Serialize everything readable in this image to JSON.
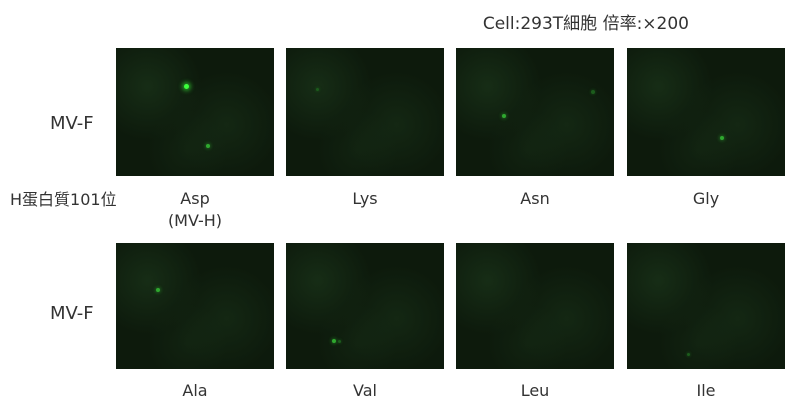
{
  "caption": "Cell:293T細胞 倍率:×200",
  "row_label": "MV-F",
  "h_label": "H蛋白質101位",
  "top_row": [
    {
      "line1": "Asp",
      "line2": "(MV-H)"
    },
    {
      "line1": "Lys",
      "line2": ""
    },
    {
      "line1": "Asn",
      "line2": ""
    },
    {
      "line1": "Gly",
      "line2": ""
    }
  ],
  "bottom_row": [
    {
      "line1": "Ala"
    },
    {
      "line1": "Val"
    },
    {
      "line1": "Leu"
    },
    {
      "line1": "Ile"
    }
  ],
  "colors": {
    "panel_background": "#0d1a0c",
    "fluorescence": "#3cff3c"
  }
}
